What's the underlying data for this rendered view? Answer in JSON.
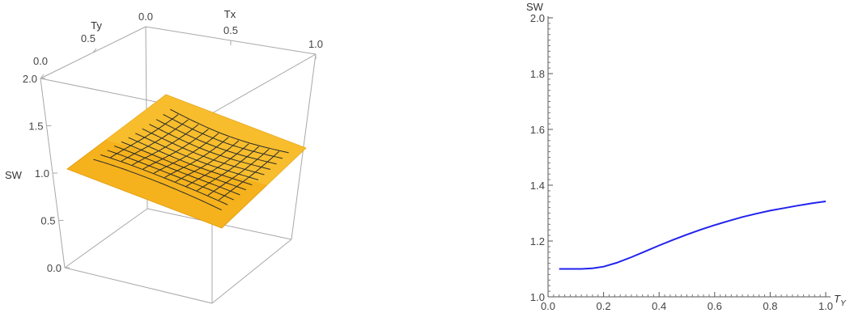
{
  "chart_data": [
    {
      "type": "surface",
      "axes": {
        "x": {
          "label": "Tx",
          "ticks": [
            "0.0",
            "0.5",
            "1.0"
          ]
        },
        "y": {
          "label": "Ty",
          "ticks": [
            "0.0",
            "0.5"
          ]
        },
        "z": {
          "label": "SW",
          "ticks": [
            "0.0",
            "0.5",
            "1.0",
            "1.5",
            "2.0"
          ],
          "range": [
            0,
            2
          ]
        }
      },
      "surface_color": "#f5b21c",
      "mesh_color": "#2b2b2b",
      "box": true
    },
    {
      "type": "line",
      "xlabel": "T",
      "xlabel_sub": "Y",
      "ylabel": "SW",
      "xlim": [
        0,
        1
      ],
      "ylim": [
        1,
        2
      ],
      "xticks": [
        "0.0",
        "0.2",
        "0.4",
        "0.6",
        "0.8",
        "1.0"
      ],
      "yticks": [
        "1.0",
        "1.2",
        "1.4",
        "1.6",
        "1.8",
        "2.0"
      ],
      "series": [
        {
          "color": "#2222ee",
          "x": [
            0.04,
            0.08,
            0.12,
            0.16,
            0.2,
            0.25,
            0.3,
            0.35,
            0.4,
            0.45,
            0.5,
            0.55,
            0.6,
            0.65,
            0.7,
            0.75,
            0.8,
            0.85,
            0.9,
            0.95,
            1.0
          ],
          "y": [
            1.1,
            1.1,
            1.1,
            1.102,
            1.108,
            1.123,
            1.142,
            1.163,
            1.184,
            1.204,
            1.223,
            1.241,
            1.257,
            1.272,
            1.286,
            1.298,
            1.309,
            1.318,
            1.327,
            1.335,
            1.342
          ]
        }
      ]
    }
  ]
}
